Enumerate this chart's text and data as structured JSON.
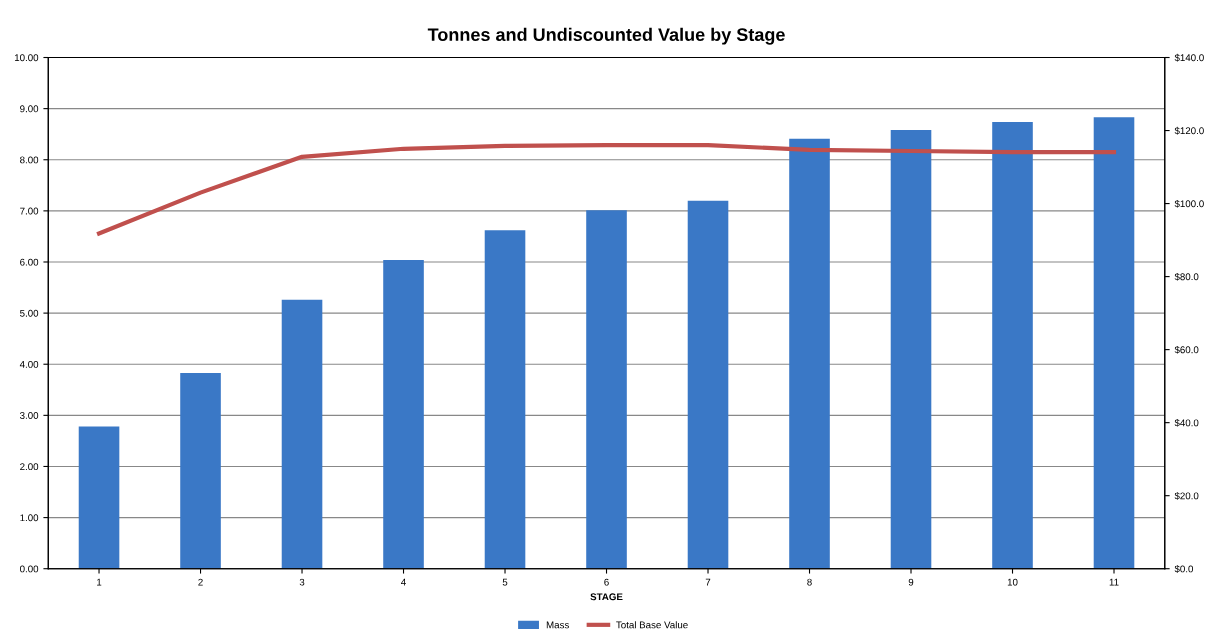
{
  "chart_data": {
    "type": "bar",
    "title": "Tonnes and Undiscounted Value by Stage",
    "xlabel": "STAGE",
    "categories": [
      "1",
      "2",
      "3",
      "4",
      "5",
      "6",
      "7",
      "8",
      "9",
      "10",
      "11"
    ],
    "series": [
      {
        "name": "Mass",
        "color": "#3a78c6",
        "values": [
          2.78,
          3.83,
          5.26,
          6.04,
          6.62,
          7.01,
          7.2,
          8.41,
          8.58,
          8.74,
          8.83
        ]
      },
      {
        "name": "Total Base Value",
        "type": "line",
        "axis": "y2",
        "color": "#c0504d",
        "values": [
          91.8,
          103,
          112.8,
          115,
          115.8,
          116,
          116,
          114.7,
          114.4,
          114.1,
          114.1
        ]
      }
    ],
    "ylim": [
      0,
      10
    ],
    "yticks": [
      {
        "value": 0,
        "label": "0.00"
      },
      {
        "value": 1,
        "label": "1.00"
      },
      {
        "value": 2,
        "label": "2.00"
      },
      {
        "value": 3,
        "label": "3.00"
      },
      {
        "value": 4,
        "label": "4.00"
      },
      {
        "value": 5,
        "label": "5.00"
      },
      {
        "value": 6,
        "label": "6.00"
      },
      {
        "value": 7,
        "label": "7.00"
      },
      {
        "value": 8,
        "label": "8.00"
      },
      {
        "value": 9,
        "label": "9.00"
      },
      {
        "value": 10,
        "label": "10.00"
      }
    ],
    "y2lim": [
      0,
      140
    ],
    "y2ticks": [
      {
        "value": 0,
        "label": "$0.0"
      },
      {
        "value": 20,
        "label": "$20.0"
      },
      {
        "value": 40,
        "label": "$40.0"
      },
      {
        "value": 60,
        "label": "$60.0"
      },
      {
        "value": 80,
        "label": "$80.0"
      },
      {
        "value": 100,
        "label": "$100.0"
      },
      {
        "value": 120,
        "label": "$120.0"
      },
      {
        "value": 140,
        "label": "$140.0"
      }
    ],
    "grid": "y",
    "legend": "bottom",
    "marker": "none",
    "line_style": "solid"
  }
}
